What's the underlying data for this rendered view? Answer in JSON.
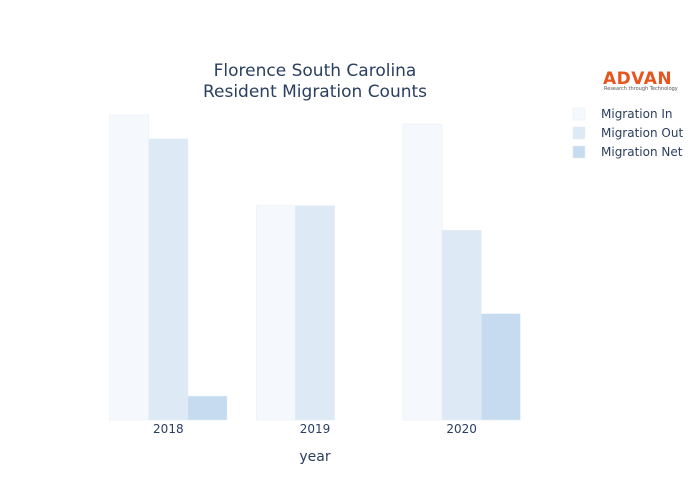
{
  "logo": {
    "name": "ADVAN",
    "tagline": "Research through Technology",
    "color": "#e8541c"
  },
  "chart_data": {
    "type": "bar",
    "title_lines": [
      "Florence South Carolina",
      "Resident Migration Counts"
    ],
    "xlabel": "year",
    "ylabel": "",
    "categories": [
      "2018",
      "2019",
      "2020"
    ],
    "series": [
      {
        "name": "Migration In",
        "values": [
          3700,
          2600,
          3590
        ],
        "color": "#f5f9fd"
      },
      {
        "name": "Migration Out",
        "values": [
          3410,
          2600,
          2300
        ],
        "color": "#dde9f5"
      },
      {
        "name": "Migration Net",
        "values": [
          290,
          0,
          1290
        ],
        "color": "#c6dbef"
      }
    ],
    "ylim": [
      0,
      3700
    ],
    "grid": false,
    "legend_position": "top-right"
  }
}
